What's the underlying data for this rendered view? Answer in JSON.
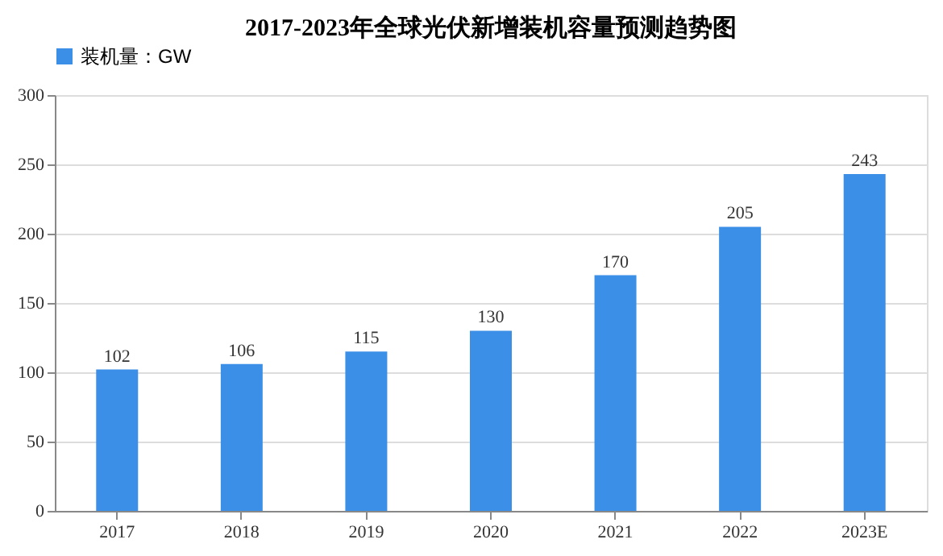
{
  "chart_data": {
    "type": "bar",
    "title": "2017-2023年全球光伏新增装机容量预测趋势图",
    "categories": [
      "2017",
      "2018",
      "2019",
      "2020",
      "2021",
      "2022",
      "2023E"
    ],
    "series": [
      {
        "name": "装机量：GW",
        "color": "#3c8fe6",
        "values": [
          102,
          106,
          115,
          130,
          170,
          205,
          243
        ]
      }
    ],
    "ylim": [
      0,
      300
    ],
    "yticks": [
      0,
      50,
      100,
      150,
      200,
      250,
      300
    ],
    "grid": "y",
    "legend": "top",
    "data_labels": true
  }
}
